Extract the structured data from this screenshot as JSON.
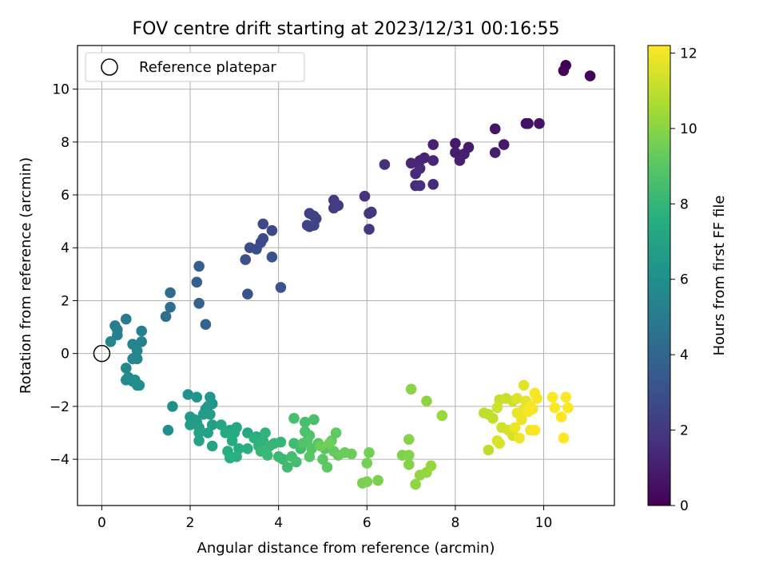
{
  "chart_data": {
    "type": "scatter",
    "title": "FOV centre drift starting at 2023/12/31 00:16:55",
    "xlabel": "Angular distance from reference (arcmin)",
    "ylabel": "Rotation from reference (arcmin)",
    "xlim": [
      -0.55,
      11.6
    ],
    "ylim": [
      -5.75,
      11.65
    ],
    "xticks": [
      0,
      2,
      4,
      6,
      8,
      10
    ],
    "yticks": [
      -4,
      -2,
      0,
      2,
      4,
      6,
      8,
      10
    ],
    "grid": true,
    "legend": {
      "placement": "top-left",
      "entries": [
        "Reference platepar"
      ]
    },
    "reference_point": {
      "x": 0,
      "y": 0
    },
    "colorbar": {
      "label": "Hours from first FF file",
      "colormap": "viridis",
      "range": [
        0,
        12.2
      ],
      "ticks": [
        0,
        2,
        4,
        6,
        8,
        10,
        12
      ]
    },
    "points": [
      [
        10.5,
        10.9,
        0.05
      ],
      [
        10.45,
        10.7,
        0.1
      ],
      [
        11.05,
        10.5,
        0.15
      ],
      [
        9.6,
        8.7,
        0.5
      ],
      [
        9.65,
        8.7,
        0.55
      ],
      [
        9.9,
        8.7,
        0.6
      ],
      [
        8.9,
        8.5,
        0.7
      ],
      [
        8.0,
        7.95,
        0.8
      ],
      [
        9.1,
        7.9,
        0.85
      ],
      [
        8.3,
        7.8,
        0.9
      ],
      [
        8.0,
        7.6,
        0.95
      ],
      [
        8.9,
        7.6,
        1.0
      ],
      [
        8.2,
        7.55,
        1.05
      ],
      [
        8.1,
        7.3,
        1.1
      ],
      [
        7.5,
        7.9,
        1.15
      ],
      [
        7.3,
        7.4,
        1.2
      ],
      [
        7.2,
        7.3,
        1.25
      ],
      [
        7.5,
        7.3,
        1.3
      ],
      [
        7.0,
        7.2,
        1.35
      ],
      [
        7.2,
        7.0,
        1.4
      ],
      [
        7.1,
        6.8,
        1.45
      ],
      [
        7.5,
        6.4,
        1.5
      ],
      [
        7.1,
        6.35,
        1.55
      ],
      [
        7.2,
        6.35,
        1.6
      ],
      [
        6.4,
        7.15,
        1.7
      ],
      [
        5.95,
        5.95,
        1.8
      ],
      [
        6.1,
        5.35,
        1.9
      ],
      [
        6.05,
        5.3,
        1.95
      ],
      [
        6.05,
        4.7,
        2.0
      ],
      [
        5.25,
        5.8,
        2.1
      ],
      [
        5.35,
        5.6,
        2.15
      ],
      [
        5.25,
        5.5,
        2.2
      ],
      [
        4.7,
        5.3,
        2.3
      ],
      [
        4.8,
        5.2,
        2.35
      ],
      [
        4.85,
        5.1,
        2.4
      ],
      [
        4.65,
        4.85,
        2.45
      ],
      [
        4.8,
        4.85,
        2.5
      ],
      [
        4.7,
        4.8,
        2.55
      ],
      [
        3.65,
        4.9,
        2.65
      ],
      [
        3.85,
        4.65,
        2.7
      ],
      [
        3.65,
        4.35,
        2.75
      ],
      [
        3.6,
        4.2,
        2.8
      ],
      [
        3.35,
        4.0,
        2.85
      ],
      [
        3.5,
        3.95,
        2.9
      ],
      [
        3.25,
        3.55,
        2.95
      ],
      [
        3.85,
        3.65,
        3.0
      ],
      [
        3.3,
        2.25,
        3.1
      ],
      [
        4.05,
        2.5,
        3.2
      ],
      [
        2.2,
        3.3,
        3.6
      ],
      [
        2.15,
        2.7,
        3.7
      ],
      [
        2.2,
        1.9,
        3.8
      ],
      [
        2.35,
        1.1,
        3.9
      ],
      [
        1.55,
        2.3,
        4.3
      ],
      [
        1.55,
        1.75,
        4.4
      ],
      [
        1.45,
        1.4,
        4.5
      ],
      [
        0.55,
        1.3,
        5.0
      ],
      [
        0.3,
        1.05,
        5.1
      ],
      [
        0.35,
        0.9,
        5.15
      ],
      [
        0.35,
        0.7,
        5.2
      ],
      [
        0.9,
        0.85,
        5.3
      ],
      [
        0.9,
        0.45,
        5.35
      ],
      [
        0.7,
        0.35,
        5.4
      ],
      [
        0.2,
        0.45,
        5.45
      ],
      [
        0.8,
        0.1,
        5.5
      ],
      [
        0.8,
        -0.2,
        5.55
      ],
      [
        0.7,
        -0.2,
        5.6
      ],
      [
        0.55,
        -0.55,
        5.65
      ],
      [
        0.6,
        -0.9,
        5.7
      ],
      [
        0.55,
        -1.0,
        5.75
      ],
      [
        0.75,
        -1.0,
        5.8
      ],
      [
        0.7,
        -1.05,
        5.85
      ],
      [
        0.8,
        -1.2,
        5.9
      ],
      [
        0.85,
        -1.2,
        5.95
      ],
      [
        1.5,
        -2.9,
        6.0
      ],
      [
        1.6,
        -2.0,
        6.05
      ],
      [
        1.95,
        -1.55,
        6.2
      ],
      [
        2.15,
        -1.65,
        6.25
      ],
      [
        2.45,
        -1.65,
        6.3
      ],
      [
        2.5,
        -1.9,
        6.35
      ],
      [
        2.35,
        -2.1,
        6.4
      ],
      [
        2.4,
        -2.0,
        6.45
      ],
      [
        2.0,
        -2.4,
        6.5
      ],
      [
        2.1,
        -2.5,
        6.55
      ],
      [
        2.15,
        -2.6,
        6.6
      ],
      [
        2.3,
        -2.3,
        6.65
      ],
      [
        2.45,
        -2.3,
        6.7
      ],
      [
        2.0,
        -2.7,
        6.75
      ],
      [
        2.2,
        -2.8,
        6.8
      ],
      [
        2.5,
        -2.7,
        6.85
      ],
      [
        2.4,
        -3.0,
        6.9
      ],
      [
        2.2,
        -3.0,
        6.95
      ],
      [
        2.2,
        -3.3,
        7.0
      ],
      [
        2.5,
        -3.5,
        7.05
      ],
      [
        2.7,
        -2.7,
        7.1
      ],
      [
        2.9,
        -2.9,
        7.15
      ],
      [
        3.05,
        -2.8,
        7.2
      ],
      [
        3.3,
        -3.0,
        7.25
      ],
      [
        3.5,
        -3.15,
        7.3
      ],
      [
        3.0,
        -3.0,
        7.35
      ],
      [
        2.8,
        -3.0,
        7.4
      ],
      [
        2.95,
        -3.3,
        7.45
      ],
      [
        3.1,
        -3.6,
        7.5
      ],
      [
        2.85,
        -3.7,
        7.55
      ],
      [
        3.05,
        -3.9,
        7.6
      ],
      [
        2.9,
        -3.95,
        7.65
      ],
      [
        3.3,
        -3.6,
        7.7
      ],
      [
        3.45,
        -3.2,
        7.75
      ],
      [
        3.55,
        -3.5,
        7.8
      ],
      [
        3.65,
        -3.3,
        7.85
      ],
      [
        3.7,
        -3.0,
        7.9
      ],
      [
        3.9,
        -3.4,
        7.95
      ],
      [
        4.05,
        -3.35,
        8.0
      ],
      [
        3.8,
        -3.5,
        8.05
      ],
      [
        3.6,
        -3.7,
        8.1
      ],
      [
        3.75,
        -3.85,
        8.15
      ],
      [
        4.0,
        -3.9,
        8.2
      ],
      [
        4.1,
        -4.0,
        8.25
      ],
      [
        4.2,
        -4.3,
        8.3
      ],
      [
        4.35,
        -3.4,
        8.35
      ],
      [
        4.5,
        -3.6,
        8.4
      ],
      [
        4.3,
        -3.9,
        8.45
      ],
      [
        4.4,
        -4.1,
        8.5
      ],
      [
        4.35,
        -2.45,
        8.55
      ],
      [
        4.6,
        -2.6,
        8.55
      ],
      [
        4.8,
        -2.5,
        8.6
      ],
      [
        4.6,
        -2.95,
        8.65
      ],
      [
        4.7,
        -3.1,
        8.7
      ],
      [
        4.55,
        -3.4,
        8.75
      ],
      [
        4.65,
        -3.3,
        8.8
      ],
      [
        4.75,
        -3.6,
        8.85
      ],
      [
        4.9,
        -3.4,
        8.9
      ],
      [
        5.05,
        -3.6,
        8.95
      ],
      [
        4.7,
        -3.9,
        9.0
      ],
      [
        5.0,
        -4.0,
        9.05
      ],
      [
        5.1,
        -4.3,
        9.1
      ],
      [
        5.3,
        -3.0,
        9.15
      ],
      [
        5.2,
        -3.3,
        9.2
      ],
      [
        5.25,
        -3.7,
        9.25
      ],
      [
        5.35,
        -3.85,
        9.3
      ],
      [
        5.5,
        -3.75,
        9.35
      ],
      [
        5.65,
        -3.8,
        9.4
      ],
      [
        4.95,
        -3.5,
        9.45
      ],
      [
        5.15,
        -3.4,
        9.5
      ],
      [
        6.05,
        -3.75,
        9.55
      ],
      [
        6.0,
        -4.15,
        9.6
      ],
      [
        5.9,
        -4.9,
        9.65
      ],
      [
        6.0,
        -4.85,
        9.7
      ],
      [
        6.25,
        -4.8,
        9.75
      ],
      [
        6.8,
        -3.85,
        9.8
      ],
      [
        6.95,
        -3.85,
        9.85
      ],
      [
        6.95,
        -4.2,
        9.9
      ],
      [
        6.95,
        -3.25,
        9.95
      ],
      [
        7.0,
        -1.35,
        10.0
      ],
      [
        7.35,
        -1.8,
        10.05
      ],
      [
        7.1,
        -4.95,
        10.1
      ],
      [
        7.2,
        -4.6,
        10.15
      ],
      [
        7.35,
        -4.5,
        10.2
      ],
      [
        7.45,
        -4.25,
        10.25
      ],
      [
        7.7,
        -2.35,
        10.3
      ],
      [
        8.75,
        -3.65,
        11.0
      ],
      [
        8.65,
        -2.25,
        11.0
      ],
      [
        8.75,
        -2.3,
        11.05
      ],
      [
        8.85,
        -2.45,
        11.1
      ],
      [
        9.0,
        -1.75,
        11.15
      ],
      [
        9.15,
        -1.7,
        11.2
      ],
      [
        9.3,
        -1.8,
        11.25
      ],
      [
        8.95,
        -2.05,
        11.3
      ],
      [
        9.05,
        -2.8,
        11.35
      ],
      [
        9.2,
        -2.9,
        11.4
      ],
      [
        9.3,
        -3.1,
        11.45
      ],
      [
        8.95,
        -3.3,
        11.5
      ],
      [
        9.0,
        -3.4,
        11.55
      ],
      [
        9.4,
        -1.7,
        11.6
      ],
      [
        9.55,
        -1.2,
        11.65
      ],
      [
        9.6,
        -1.8,
        11.7
      ],
      [
        9.55,
        -2.1,
        11.75
      ],
      [
        9.4,
        -2.25,
        11.8
      ],
      [
        9.5,
        -2.5,
        11.85
      ],
      [
        9.35,
        -2.8,
        11.9
      ],
      [
        9.45,
        -3.2,
        11.95
      ],
      [
        9.7,
        -2.9,
        12.0
      ],
      [
        9.75,
        -2.1,
        12.0
      ],
      [
        9.8,
        -1.5,
        12.05
      ],
      [
        9.85,
        -1.7,
        12.05
      ],
      [
        9.7,
        -2.0,
        12.05
      ],
      [
        9.8,
        -2.9,
        12.1
      ],
      [
        9.65,
        -2.2,
        12.1
      ],
      [
        10.2,
        -1.65,
        12.15
      ],
      [
        10.25,
        -2.05,
        12.15
      ],
      [
        10.4,
        -2.4,
        12.2
      ],
      [
        10.45,
        -3.2,
        12.2
      ],
      [
        10.5,
        -1.65,
        12.2
      ],
      [
        10.55,
        -2.05,
        12.2
      ]
    ]
  }
}
